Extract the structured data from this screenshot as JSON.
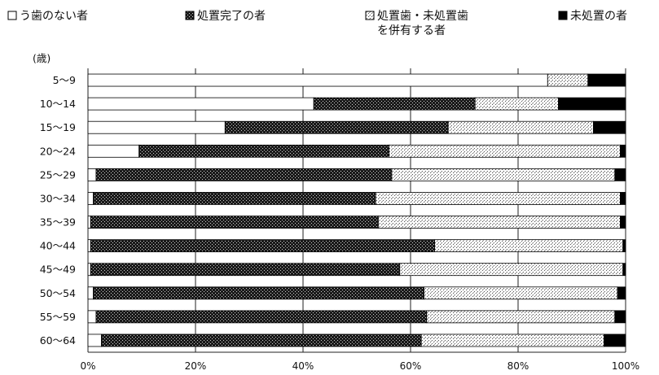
{
  "chart_data": {
    "type": "bar",
    "orientation": "horizontal",
    "stacked": "percent",
    "ylabel": "(歳)",
    "categories": [
      "5～9",
      "10～14",
      "15～19",
      "20～24",
      "25～29",
      "30～34",
      "35～39",
      "40～44",
      "45～49",
      "50～54",
      "55～59",
      "60～64"
    ],
    "series": [
      {
        "name": "う歯のない者",
        "color": "#ffffff",
        "pattern": "none",
        "values": [
          85.5,
          42,
          25.5,
          9.5,
          1.5,
          1,
          0.5,
          0.5,
          0.5,
          1,
          1.5,
          2.5
        ]
      },
      {
        "name": "処置完了の者",
        "color": "#222222",
        "pattern": "dense",
        "values": [
          0,
          30,
          41.5,
          46.5,
          55,
          52.5,
          53.5,
          64,
          57.5,
          61.5,
          61.5,
          59.5
        ]
      },
      {
        "name": "処置歯・未処置歯を併有する者",
        "color": "#888888",
        "pattern": "light",
        "values": [
          7.5,
          15.5,
          27,
          43,
          41.5,
          45.5,
          45,
          35,
          41.5,
          36,
          35,
          34
        ]
      },
      {
        "name": "未処置の者",
        "color": "#000000",
        "pattern": "solid",
        "values": [
          7,
          12.5,
          6,
          1,
          2,
          1,
          1,
          0.5,
          0.5,
          1.5,
          2,
          4
        ]
      }
    ],
    "x_ticks": [
      "0%",
      "20%",
      "40%",
      "60%",
      "80%",
      "100%"
    ],
    "xlim": [
      0,
      100
    ],
    "grid": "vertical",
    "legend_position": "top"
  }
}
